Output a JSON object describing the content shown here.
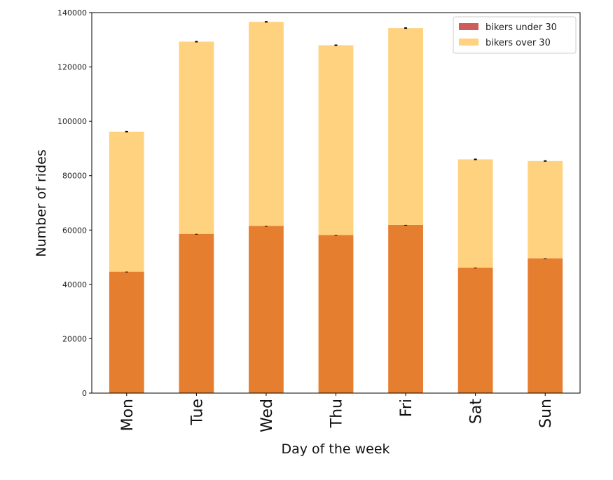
{
  "chart_data": {
    "type": "bar",
    "stacked": true,
    "categories": [
      "Mon",
      "Tue",
      "Wed",
      "Thu",
      "Fri",
      "Sat",
      "Sun"
    ],
    "series": [
      {
        "name": "bikers under 30",
        "legend_color": "#cd5c5c",
        "color": "#e67e30",
        "values": [
          44700,
          58600,
          61500,
          58200,
          61900,
          46200,
          49600
        ]
      },
      {
        "name": "bikers over 30",
        "legend_color": "#ffd27f",
        "color": "#ffd27f",
        "values": [
          51500,
          70700,
          75100,
          69800,
          72400,
          39800,
          35800
        ]
      }
    ],
    "title": "",
    "xlabel": "Day of the week",
    "ylabel": "Number of rides",
    "ylim": [
      0,
      140000
    ],
    "yticks": [
      0,
      20000,
      40000,
      60000,
      80000,
      100000,
      120000,
      140000
    ],
    "grid": false,
    "legend": "top-right",
    "error_bars": true
  }
}
